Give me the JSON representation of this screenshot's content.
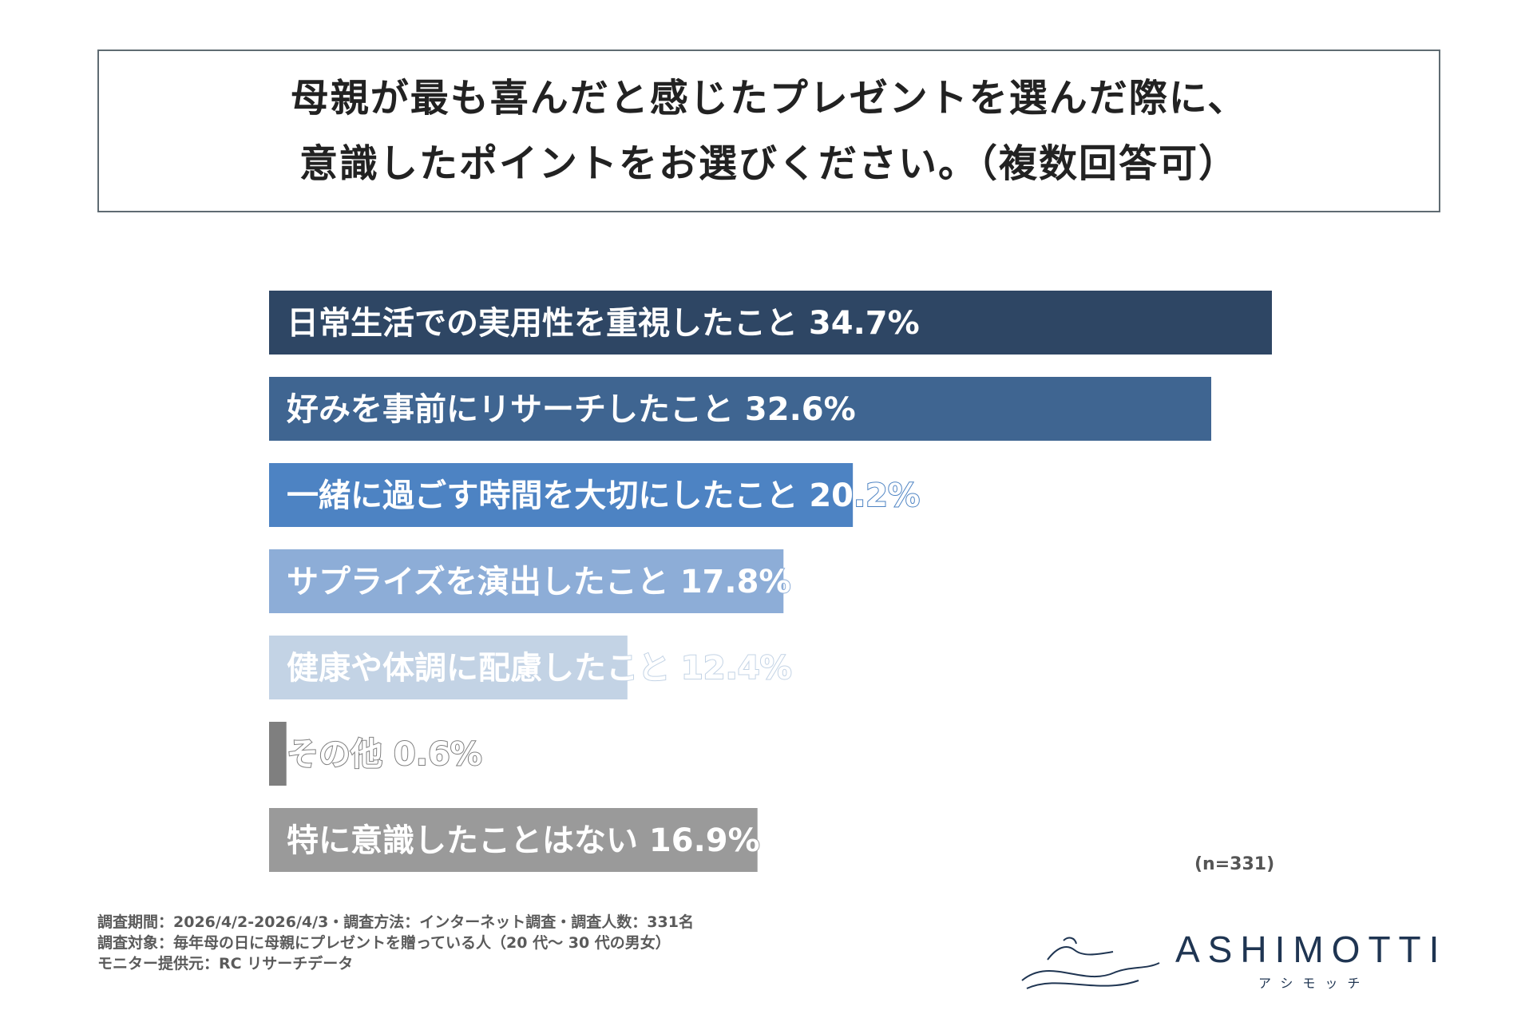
{
  "title": {
    "line1": "母親が最も喜んだと感じたプレゼントを選んだ際に、",
    "line2": "意識したポイントをお選びください。（複数回答可）"
  },
  "chart_data": {
    "type": "bar",
    "orientation": "horizontal",
    "categories": [
      "日常生活での実用性を重視したこと",
      "好みを事前にリサーチしたこと",
      "一緒に過ごす時間を大切にしたこと",
      "サプライズを演出したこと",
      "健康や体調に配慮したこと",
      "その他",
      "特に意識したことはない"
    ],
    "values": [
      34.7,
      32.6,
      20.2,
      17.8,
      12.4,
      0.6,
      16.9
    ],
    "value_labels": [
      "34.7%",
      "32.6%",
      "20.2%",
      "17.8%",
      "12.4%",
      "0.6%",
      "16.9%"
    ],
    "colors": [
      "#2e4664",
      "#3f6591",
      "#4d83c3",
      "#8dadd7",
      "#c3d3e5",
      "#7f7f7f",
      "#9a9a9a"
    ],
    "xlim": [
      0,
      34.7
    ],
    "grid": false,
    "legend": "none"
  },
  "sample_note": "(n=331)",
  "footnotes": [
    "調査期間：2026/4/2-2026/4/3・調査方法：インターネット調査・調査人数：331名",
    "調査対象：毎年母の日に母親にプレゼントを贈っている人（20 代〜 30 代の男女）",
    "モニター提供元：RC リサーチデータ"
  ],
  "logo": {
    "name": "ASHIMOTTI",
    "kana": "アシモッチ",
    "color": "#1f3552"
  }
}
